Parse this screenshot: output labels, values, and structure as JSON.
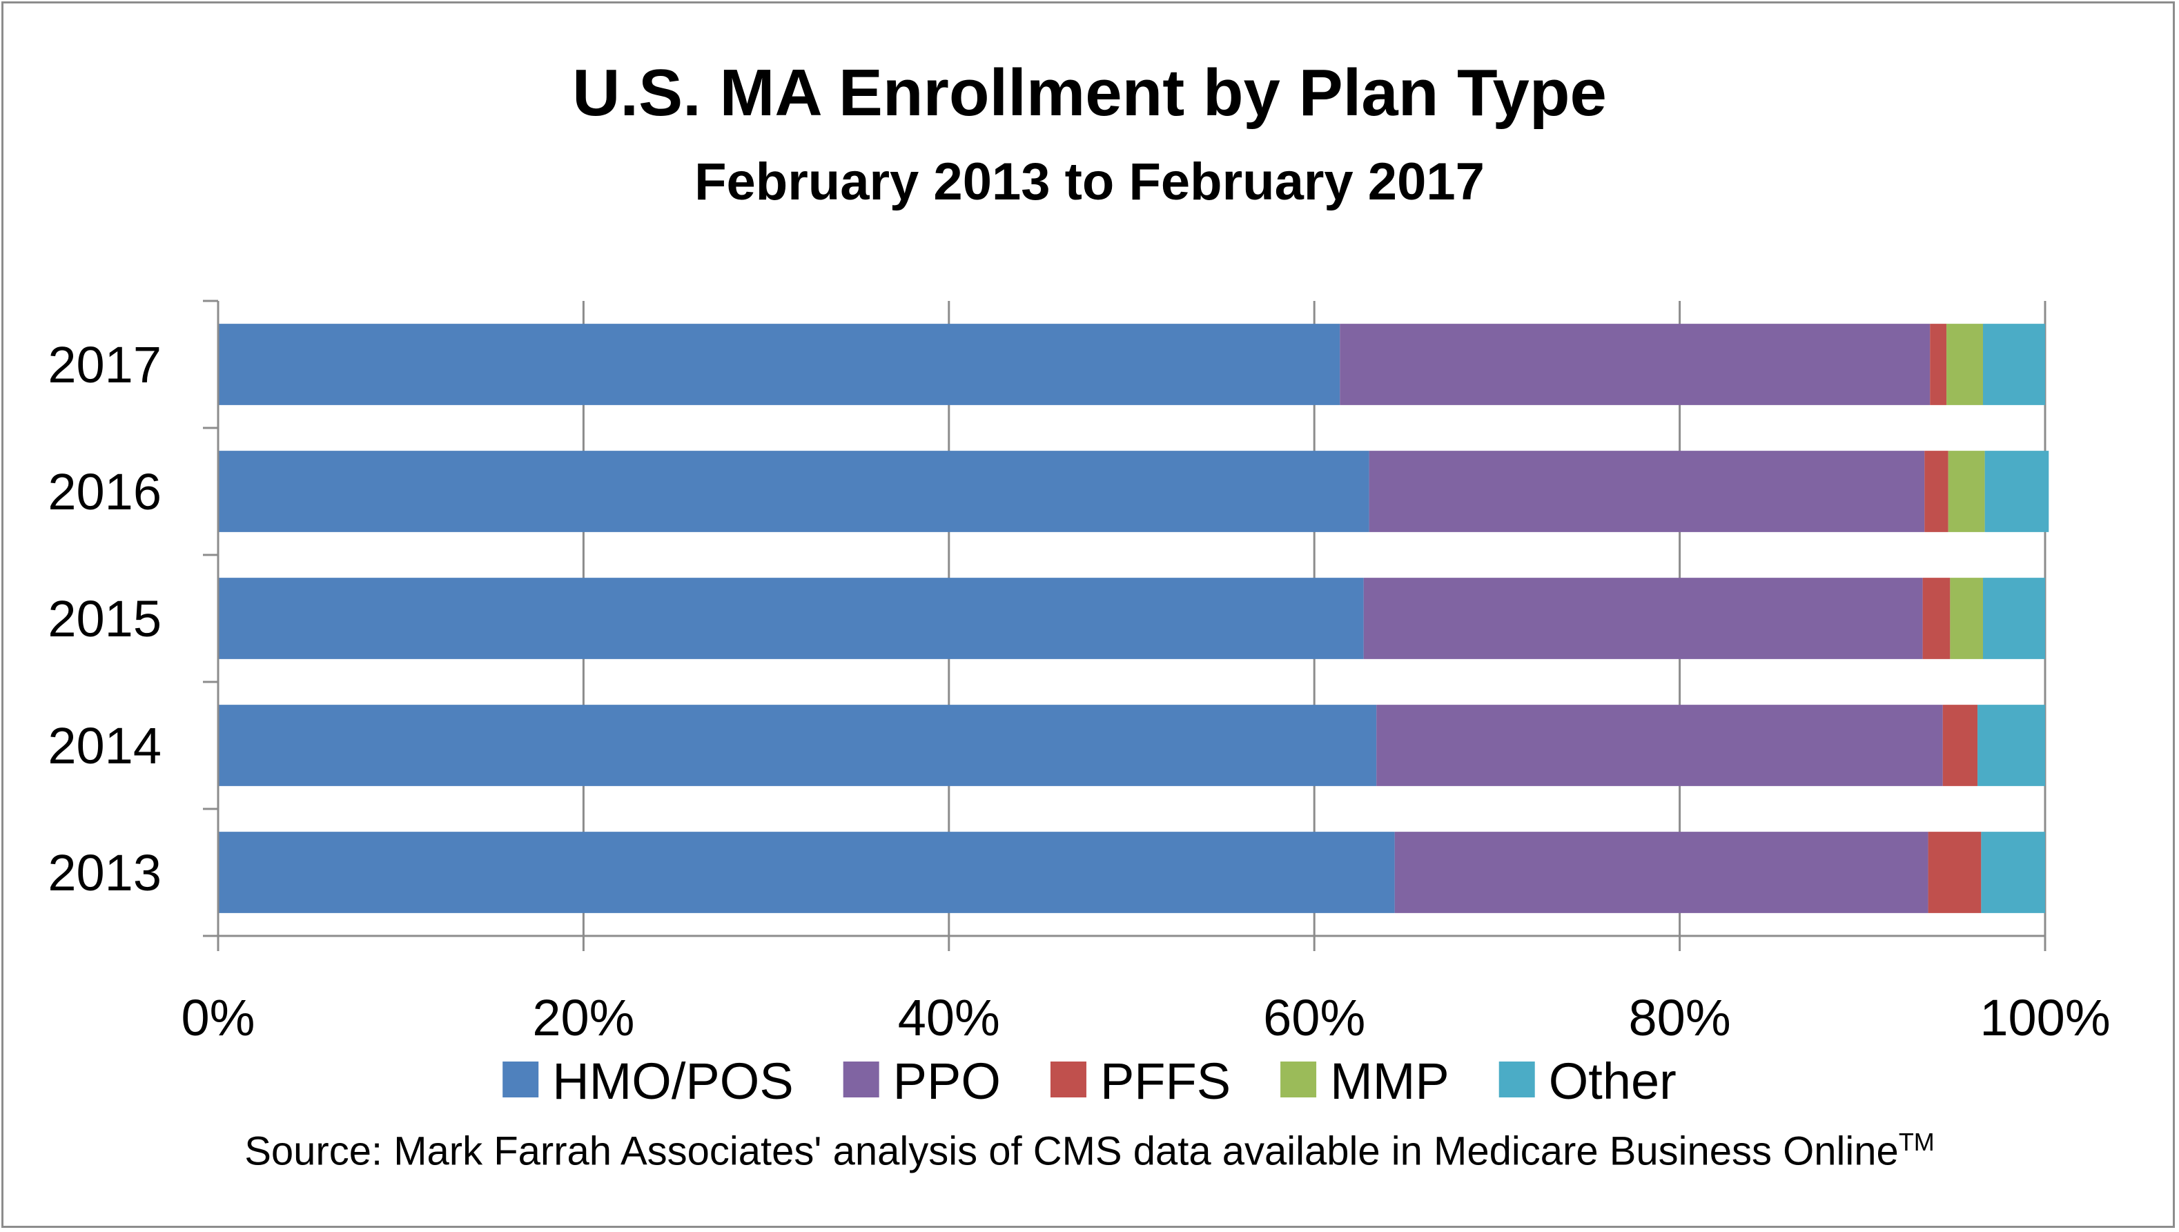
{
  "chart_data": {
    "type": "bar",
    "orientation": "horizontal",
    "stacking": "percent",
    "title": "U.S. MA Enrollment by Plan Type",
    "subtitle": "February 2013 to February 2017",
    "categories": [
      "2017",
      "2016",
      "2015",
      "2014",
      "2013"
    ],
    "series": [
      {
        "name": "HMO/POS",
        "color": "#4f81bd",
        "values": [
          61.4,
          63.0,
          62.7,
          63.4,
          64.4
        ]
      },
      {
        "name": "PPO",
        "color": "#8064a2",
        "values": [
          32.3,
          30.4,
          30.6,
          31.0,
          29.2
        ]
      },
      {
        "name": "PFFS",
        "color": "#c0504d",
        "values": [
          0.9,
          1.3,
          1.5,
          1.9,
          2.9
        ]
      },
      {
        "name": "MMP",
        "color": "#9bbb59",
        "values": [
          2.0,
          2.0,
          1.8,
          0.0,
          0.0
        ]
      },
      {
        "name": "Other",
        "color": "#4bacc6",
        "values": [
          3.4,
          3.5,
          3.4,
          3.7,
          3.5
        ]
      }
    ],
    "xlim": [
      0,
      100
    ],
    "x_ticks": [
      "0%",
      "20%",
      "40%",
      "60%",
      "80%",
      "100%"
    ],
    "grid": true,
    "legend_position": "bottom",
    "source": {
      "text": "Source: Mark Farrah Associates' analysis of CMS data available in Medicare Business Online",
      "superscript": "TM"
    }
  }
}
